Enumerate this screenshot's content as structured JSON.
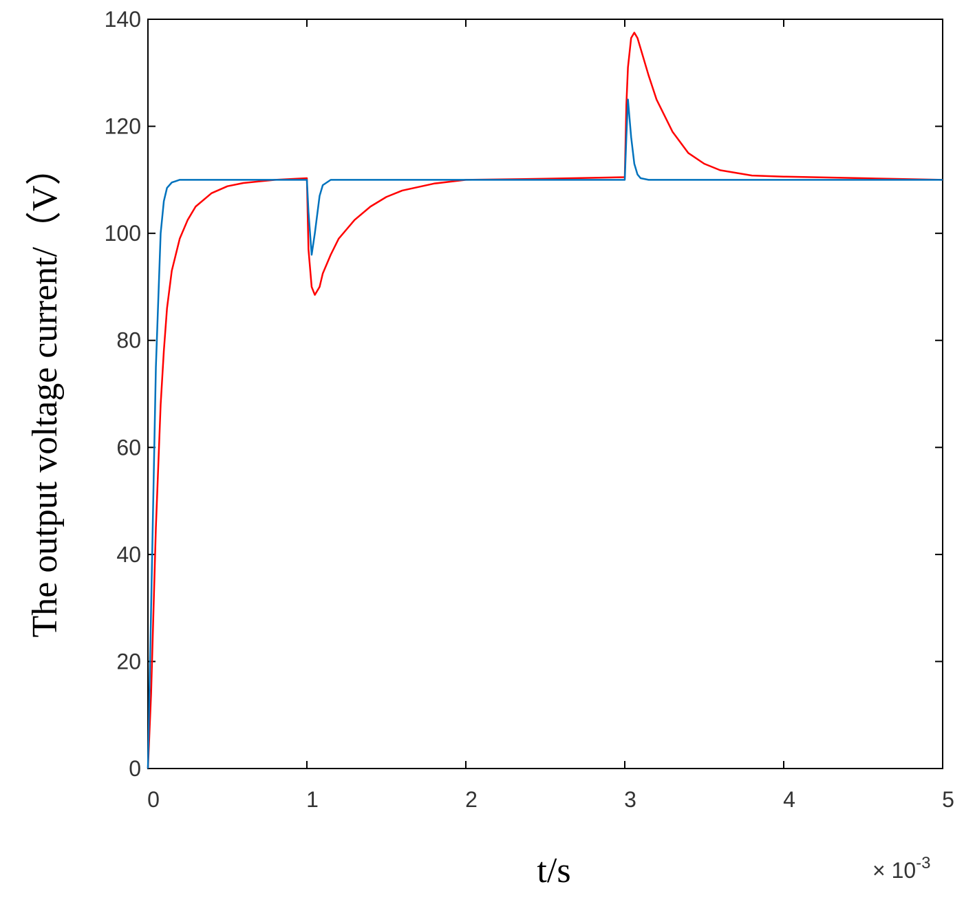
{
  "chart_data": {
    "type": "line",
    "x_label": "t/s",
    "y_label": "The output voltage current/（V）",
    "x_multiplier": "× 10",
    "x_multiplier_exponent": "-3",
    "x": [
      0,
      0.02,
      0.05,
      0.08,
      0.1,
      0.12,
      0.15,
      0.2,
      0.25,
      0.3,
      0.4,
      0.5,
      0.6,
      0.8,
      1.0,
      1.01,
      1.03,
      1.05,
      1.08,
      1.1,
      1.15,
      1.2,
      1.3,
      1.4,
      1.5,
      1.6,
      1.8,
      2.0,
      2.5,
      3.0,
      3.01,
      3.02,
      3.04,
      3.06,
      3.08,
      3.1,
      3.15,
      3.2,
      3.3,
      3.4,
      3.5,
      3.6,
      3.8,
      4.0,
      4.5,
      5.0
    ],
    "series": [
      {
        "color": "#ff0000",
        "values": [
          0,
          14,
          45,
          68,
          78,
          86,
          93,
          99,
          102.5,
          105,
          107.5,
          108.8,
          109.4,
          110,
          110.3,
          97,
          90,
          88.5,
          90,
          92.5,
          96,
          99,
          102.5,
          105,
          106.8,
          108,
          109.3,
          110,
          110.2,
          110.5,
          124,
          131,
          136.5,
          137.5,
          136.5,
          134.5,
          129.5,
          125,
          119,
          115,
          113,
          111.8,
          110.8,
          110.6,
          110.3,
          110
        ]
      },
      {
        "color": "#0072bd",
        "values": [
          0,
          30,
          75,
          100,
          106,
          108.5,
          109.5,
          110,
          110,
          110,
          110,
          110,
          110,
          110,
          110,
          104,
          96,
          100,
          107,
          109,
          110,
          110,
          110,
          110,
          110,
          110,
          110,
          110,
          110,
          110,
          118,
          125,
          118,
          113,
          111,
          110.3,
          110,
          110,
          110,
          110,
          110,
          110,
          110,
          110,
          110,
          110
        ]
      }
    ],
    "xlim": [
      0,
      5
    ],
    "xticks": [
      0,
      1,
      2,
      3,
      4,
      5
    ],
    "ylim": [
      0,
      140
    ],
    "yticks": [
      0,
      20,
      40,
      60,
      80,
      100,
      120,
      140
    ]
  }
}
